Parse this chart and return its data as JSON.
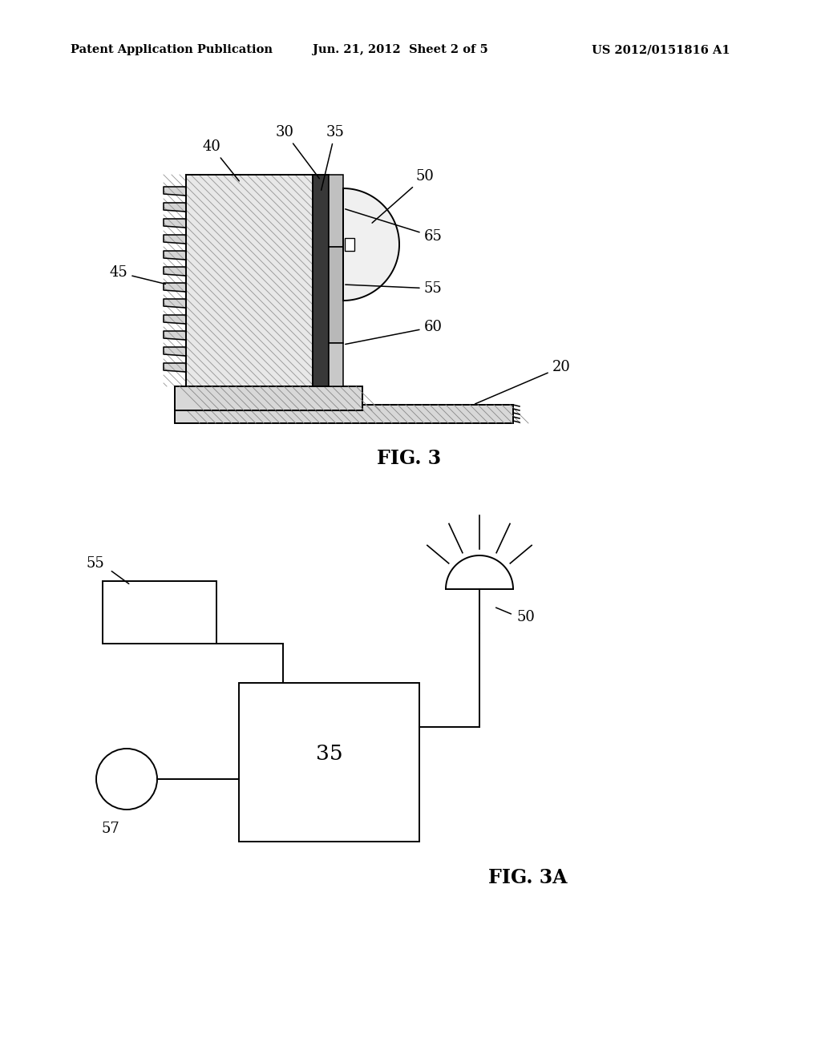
{
  "background_color": "#ffffff",
  "header_left": "Patent Application Publication",
  "header_center": "Jun. 21, 2012  Sheet 2 of 5",
  "header_right": "US 2012/0151816 A1",
  "fig3_label": "FIG. 3",
  "fig3a_label": "FIG. 3A",
  "line_color": "#000000",
  "hatch_light": "#cccccc",
  "hatch_dark": "#444444",
  "fill_white": "#ffffff",
  "fill_light_gray": "#e0e0e0",
  "fill_medium_gray": "#aaaaaa"
}
